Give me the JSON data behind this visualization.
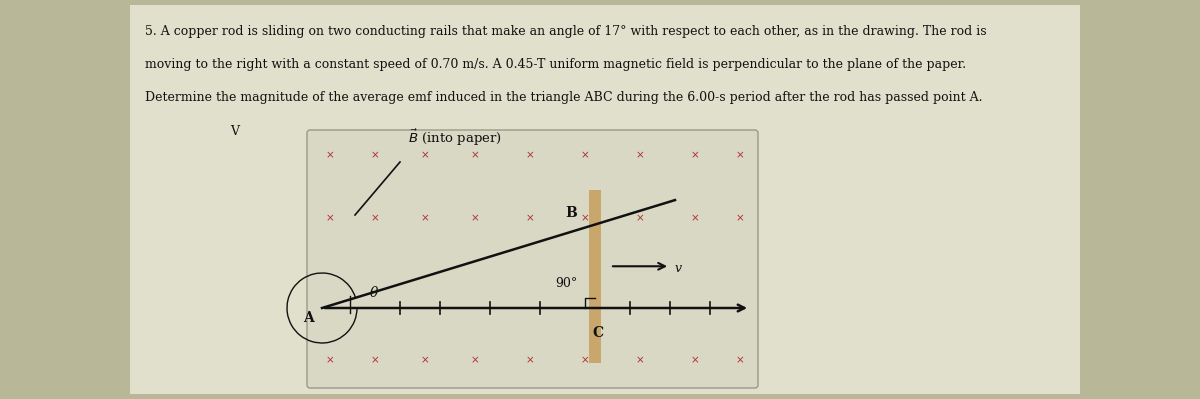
{
  "background_color": "#b8b898",
  "paper_color": "#e0e0cc",
  "title_text_1": "5. A copper rod is sliding on two conducting rails that make an angle of 17° with respect to each other, as in the drawing. The rod is",
  "title_text_2": "moving to the right with a constant speed of 0.70 m/s. A 0.45-T uniform magnetic field is perpendicular to the plane of the paper.",
  "title_text_3": "Determine the magnitude of the average emf induced in the triangle ABC during the 6.00-s period after the rod has passed point A.",
  "subtitle_text": "V",
  "title_fontsize": 9.0,
  "title_color": "#111111",
  "diagram_bg": "#d8d8c0",
  "crosses_color": "#b03030",
  "rod_color": "#c8a060",
  "rail_color": "#111111",
  "angle_label": "θ",
  "ninety_label": "90°",
  "A_label": "A",
  "B_point_label": "B",
  "C_label": "C",
  "V_label": "v"
}
